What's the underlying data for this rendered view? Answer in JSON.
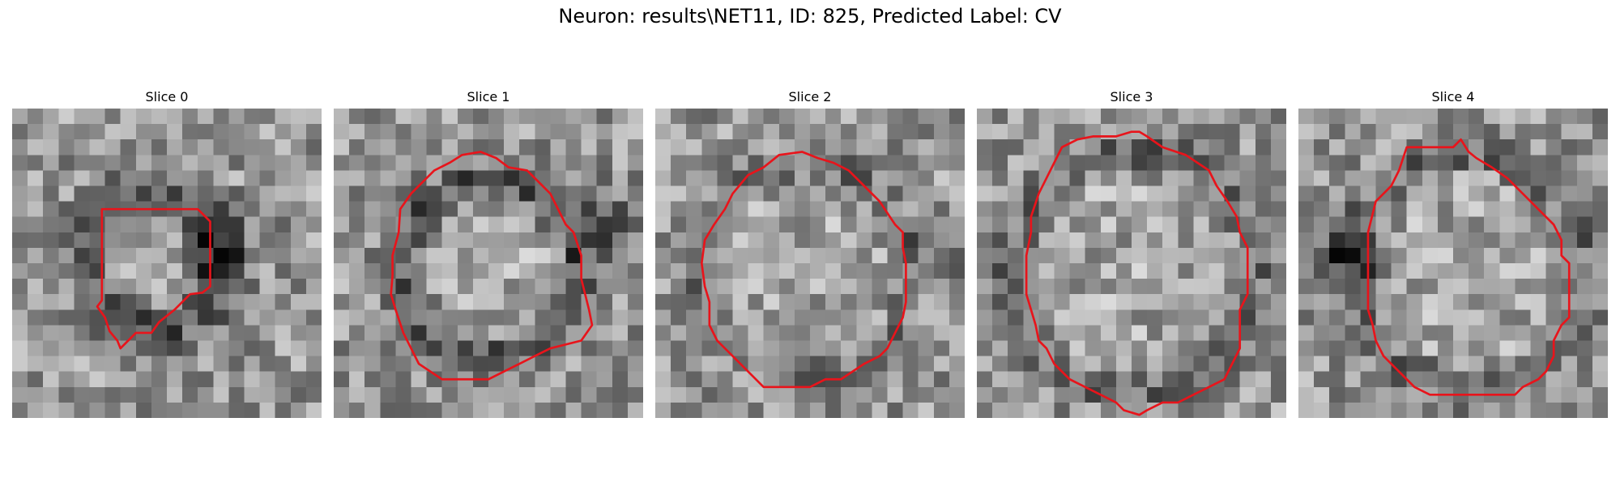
{
  "title": "Neuron: results\\NET11, ID: 825, Predicted Label: CV",
  "contour_color": "#e8141b",
  "panels": [
    {
      "label": "Slice 0",
      "outline": [
        [
          5.8,
          6.5
        ],
        [
          12.0,
          6.5
        ],
        [
          12.8,
          7.3
        ],
        [
          12.8,
          11.5
        ],
        [
          12.3,
          11.9
        ],
        [
          11.5,
          12.0
        ],
        [
          10.5,
          13.0
        ],
        [
          9.5,
          13.8
        ],
        [
          9.0,
          14.5
        ],
        [
          8.0,
          14.5
        ],
        [
          7.5,
          15.0
        ],
        [
          7.0,
          15.5
        ],
        [
          6.8,
          15.0
        ],
        [
          6.3,
          14.4
        ],
        [
          6.0,
          13.5
        ],
        [
          5.5,
          12.8
        ],
        [
          5.8,
          12.4
        ],
        [
          5.8,
          7.0
        ]
      ]
    },
    {
      "label": "Slice 1",
      "outline": [
        [
          5.0,
          5.5
        ],
        [
          6.0,
          4.5
        ],
        [
          6.5,
          4.0
        ],
        [
          7.5,
          3.5
        ],
        [
          8.3,
          3.0
        ],
        [
          9.5,
          2.8
        ],
        [
          10.5,
          3.2
        ],
        [
          11.3,
          3.8
        ],
        [
          12.5,
          4.0
        ],
        [
          13.5,
          5.0
        ],
        [
          14.0,
          5.5
        ],
        [
          14.5,
          6.5
        ],
        [
          15.0,
          7.5
        ],
        [
          15.5,
          8.0
        ],
        [
          16.0,
          9.5
        ],
        [
          16.0,
          11.0
        ],
        [
          16.5,
          13.0
        ],
        [
          16.7,
          14.0
        ],
        [
          16.0,
          15.0
        ],
        [
          14.0,
          15.5
        ],
        [
          13.0,
          16.0
        ],
        [
          12.0,
          16.5
        ],
        [
          11.0,
          17.0
        ],
        [
          10.0,
          17.5
        ],
        [
          8.0,
          17.5
        ],
        [
          7.0,
          17.5
        ],
        [
          5.5,
          16.5
        ],
        [
          5.0,
          15.5
        ],
        [
          4.5,
          14.5
        ],
        [
          4.0,
          13.0
        ],
        [
          3.7,
          12.0
        ],
        [
          3.8,
          10.8
        ],
        [
          3.8,
          9.5
        ],
        [
          4.2,
          8.0
        ],
        [
          4.3,
          6.5
        ]
      ]
    },
    {
      "label": "Slice 2",
      "outline": [
        [
          7.0,
          3.8
        ],
        [
          8.0,
          3.0
        ],
        [
          9.5,
          2.8
        ],
        [
          10.5,
          3.2
        ],
        [
          11.5,
          3.5
        ],
        [
          12.5,
          4.0
        ],
        [
          13.5,
          5.0
        ],
        [
          14.5,
          6.0
        ],
        [
          15.5,
          7.5
        ],
        [
          16.0,
          8.0
        ],
        [
          16.0,
          9.0
        ],
        [
          16.2,
          10.0
        ],
        [
          16.2,
          12.5
        ],
        [
          16.0,
          13.5
        ],
        [
          15.5,
          14.5
        ],
        [
          15.0,
          15.5
        ],
        [
          14.5,
          16.0
        ],
        [
          13.5,
          16.5
        ],
        [
          12.0,
          17.5
        ],
        [
          11.0,
          17.5
        ],
        [
          10.0,
          18.0
        ],
        [
          9.0,
          18.0
        ],
        [
          7.0,
          18.0
        ],
        [
          6.0,
          17.0
        ],
        [
          5.0,
          16.0
        ],
        [
          4.0,
          15.0
        ],
        [
          3.5,
          14.0
        ],
        [
          3.5,
          12.5
        ],
        [
          3.2,
          11.5
        ],
        [
          3.0,
          10.0
        ],
        [
          3.2,
          8.5
        ],
        [
          3.8,
          7.5
        ],
        [
          4.5,
          6.5
        ],
        [
          5.0,
          5.5
        ],
        [
          6.0,
          4.3
        ]
      ]
    },
    {
      "label": "Slice 3",
      "outline": [
        [
          5.5,
          2.5
        ],
        [
          6.5,
          2.0
        ],
        [
          7.5,
          1.8
        ],
        [
          9.0,
          1.8
        ],
        [
          10.0,
          1.5
        ],
        [
          10.5,
          1.5
        ],
        [
          11.0,
          1.8
        ],
        [
          12.0,
          2.5
        ],
        [
          13.5,
          3.0
        ],
        [
          15.0,
          4.0
        ],
        [
          15.5,
          5.0
        ],
        [
          16.2,
          6.0
        ],
        [
          16.8,
          7.0
        ],
        [
          17.0,
          8.0
        ],
        [
          17.5,
          9.0
        ],
        [
          17.5,
          10.0
        ],
        [
          17.5,
          12.0
        ],
        [
          17.0,
          13.0
        ],
        [
          17.0,
          15.5
        ],
        [
          16.5,
          16.5
        ],
        [
          16.0,
          17.5
        ],
        [
          15.0,
          18.0
        ],
        [
          14.0,
          18.5
        ],
        [
          13.0,
          19.0
        ],
        [
          12.0,
          19.0
        ],
        [
          11.0,
          19.5
        ],
        [
          10.5,
          19.8
        ],
        [
          9.5,
          19.5
        ],
        [
          9.0,
          19.0
        ],
        [
          8.0,
          18.5
        ],
        [
          7.0,
          18.0
        ],
        [
          6.0,
          17.5
        ],
        [
          5.0,
          16.5
        ],
        [
          4.5,
          15.5
        ],
        [
          4.0,
          15.0
        ],
        [
          3.8,
          14.0
        ],
        [
          3.5,
          13.0
        ],
        [
          3.2,
          12.0
        ],
        [
          3.2,
          9.5
        ],
        [
          3.5,
          8.0
        ],
        [
          3.5,
          7.0
        ],
        [
          4.0,
          5.5
        ],
        [
          4.5,
          4.5
        ],
        [
          5.0,
          3.5
        ]
      ]
    },
    {
      "label": "Slice 4",
      "outline": [
        [
          7.0,
          2.5
        ],
        [
          10.0,
          2.5
        ],
        [
          10.5,
          2.0
        ],
        [
          11.0,
          2.8
        ],
        [
          11.5,
          3.2
        ],
        [
          12.0,
          3.5
        ],
        [
          12.5,
          3.8
        ],
        [
          13.5,
          4.5
        ],
        [
          14.5,
          5.5
        ],
        [
          15.5,
          6.5
        ],
        [
          16.5,
          7.5
        ],
        [
          17.0,
          8.5
        ],
        [
          17.0,
          9.5
        ],
        [
          17.5,
          10.0
        ],
        [
          17.5,
          13.5
        ],
        [
          17.0,
          14.0
        ],
        [
          16.5,
          15.0
        ],
        [
          16.5,
          16.0
        ],
        [
          16.0,
          17.0
        ],
        [
          15.5,
          17.5
        ],
        [
          14.5,
          18.0
        ],
        [
          14.0,
          18.5
        ],
        [
          13.0,
          18.5
        ],
        [
          9.5,
          18.5
        ],
        [
          8.5,
          18.5
        ],
        [
          7.5,
          18.0
        ],
        [
          7.0,
          17.5
        ],
        [
          6.0,
          16.5
        ],
        [
          5.5,
          16.0
        ],
        [
          5.0,
          15.0
        ],
        [
          4.8,
          14.0
        ],
        [
          4.5,
          13.0
        ],
        [
          4.5,
          8.0
        ],
        [
          5.0,
          6.0
        ],
        [
          5.5,
          5.5
        ],
        [
          6.0,
          5.0
        ],
        [
          6.5,
          4.0
        ]
      ]
    }
  ]
}
